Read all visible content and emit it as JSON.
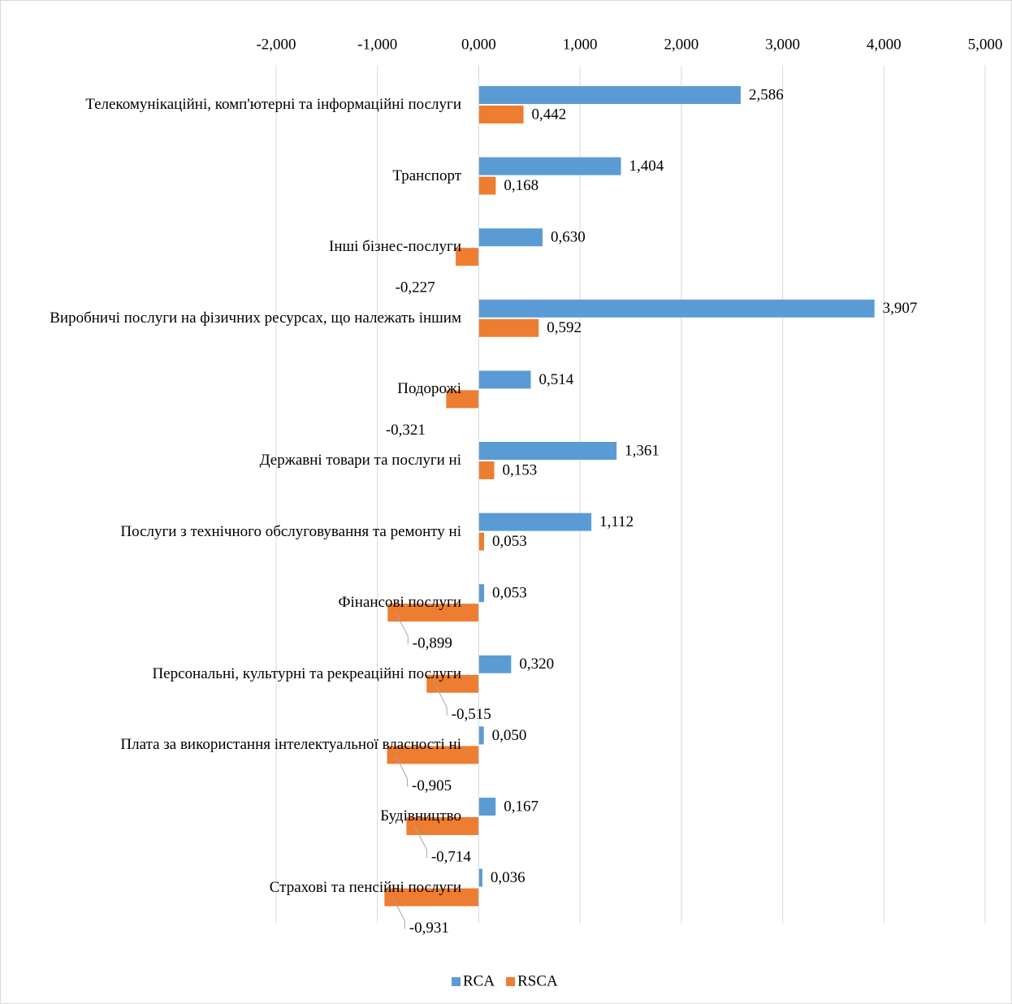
{
  "chart_data": {
    "type": "bar",
    "orientation": "horizontal",
    "categories": [
      "Телекомунікаційні, комп'ютерні та інформаційні послуги",
      "Транспорт",
      "Інші бізнес-послуги",
      "Виробничі послуги на фізичних ресурсах, що належать іншим",
      "Подорожі",
      "Державні товари та послуги ні",
      "Послуги з технічного обслуговування та ремонту ні",
      "Фінансові послуги",
      "Персональні, культурні та рекреаційні послуги",
      "Плата за використання інтелектуальної власності ні",
      "Будівництво",
      "Страхові та пенсійні послуги"
    ],
    "series": [
      {
        "name": "RCA",
        "color": "#5b9bd5",
        "values": [
          2.586,
          1.404,
          0.63,
          3.907,
          0.514,
          1.361,
          1.112,
          0.053,
          0.32,
          0.05,
          0.167,
          0.036
        ],
        "value_labels": [
          "2,586",
          "1,404",
          "0,630",
          "3,907",
          "0,514",
          "1,361",
          "1,112",
          "0,053",
          "0,320",
          "0,050",
          "0,167",
          "0,036"
        ]
      },
      {
        "name": "RSCA",
        "color": "#ed7d31",
        "values": [
          0.442,
          0.168,
          -0.227,
          0.592,
          -0.321,
          0.153,
          0.053,
          -0.899,
          -0.515,
          -0.905,
          -0.714,
          -0.931
        ],
        "value_labels": [
          "0,442",
          "0,168",
          "-0,227",
          "0,592",
          "-0,321",
          "0,153",
          "0,053",
          "-0,899",
          "-0,515",
          "-0,905",
          "-0,714",
          "-0,931"
        ]
      }
    ],
    "xlim": [
      -2,
      5
    ],
    "xticks": [
      {
        "value": -2,
        "label": "-2,000"
      },
      {
        "value": -1,
        "label": "-1,000"
      },
      {
        "value": 0,
        "label": "0,000"
      },
      {
        "value": 1,
        "label": "1,000"
      },
      {
        "value": 2,
        "label": "2,000"
      },
      {
        "value": 3,
        "label": "3,000"
      },
      {
        "value": 4,
        "label": "4,000"
      },
      {
        "value": 5,
        "label": "5,000"
      }
    ],
    "grid": true,
    "legend": "bottom"
  }
}
